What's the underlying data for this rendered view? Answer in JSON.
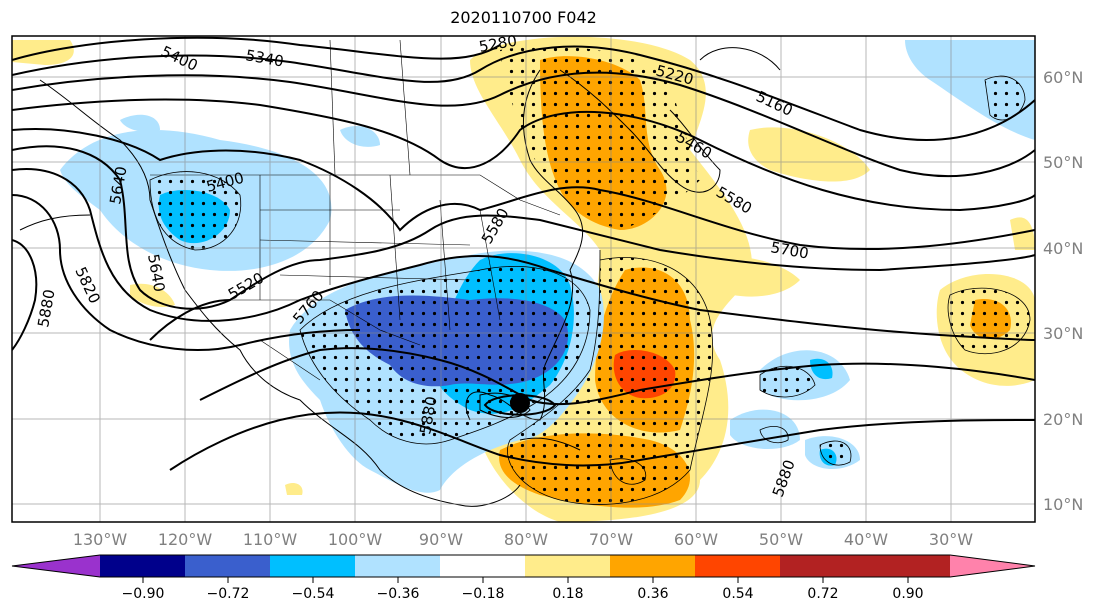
{
  "title": "2020110700 F042",
  "axes": {
    "lon_labels": [
      "130°W",
      "120°W",
      "110°W",
      "100°W",
      "90°W",
      "80°W",
      "70°W",
      "60°W",
      "50°W",
      "40°W",
      "30°W"
    ],
    "lat_labels": [
      "60°N",
      "50°N",
      "40°N",
      "30°N",
      "20°N",
      "10°N"
    ],
    "tick_color": "#808080"
  },
  "contour_labels": [
    "5400",
    "5340",
    "5280",
    "5220",
    "5160",
    "5460",
    "5580",
    "5700",
    "5640",
    "5400",
    "5520",
    "5580",
    "5760",
    "5820",
    "5880",
    "5880",
    "5880",
    "5640"
  ],
  "colorbar": {
    "ticks": [
      "−0.90",
      "−0.72",
      "−0.54",
      "−0.36",
      "−0.18",
      "0.18",
      "0.36",
      "0.54",
      "0.72",
      "0.90"
    ],
    "colors": [
      "#9a32cd",
      "#00008b",
      "#3a5fcd",
      "#00bfff",
      "#b0e2ff",
      "#ffffff",
      "#ffec8b",
      "#ffa500",
      "#ff4500",
      "#b22222",
      "#ff82ab"
    ]
  },
  "colors": {
    "light_blue": "#b0e2ff",
    "cyan": "#00bfff",
    "royal_blue": "#3a5fcd",
    "navy": "#00008b",
    "light_yellow": "#ffec8b",
    "orange": "#ffa500",
    "orange_red": "#ff4500"
  }
}
